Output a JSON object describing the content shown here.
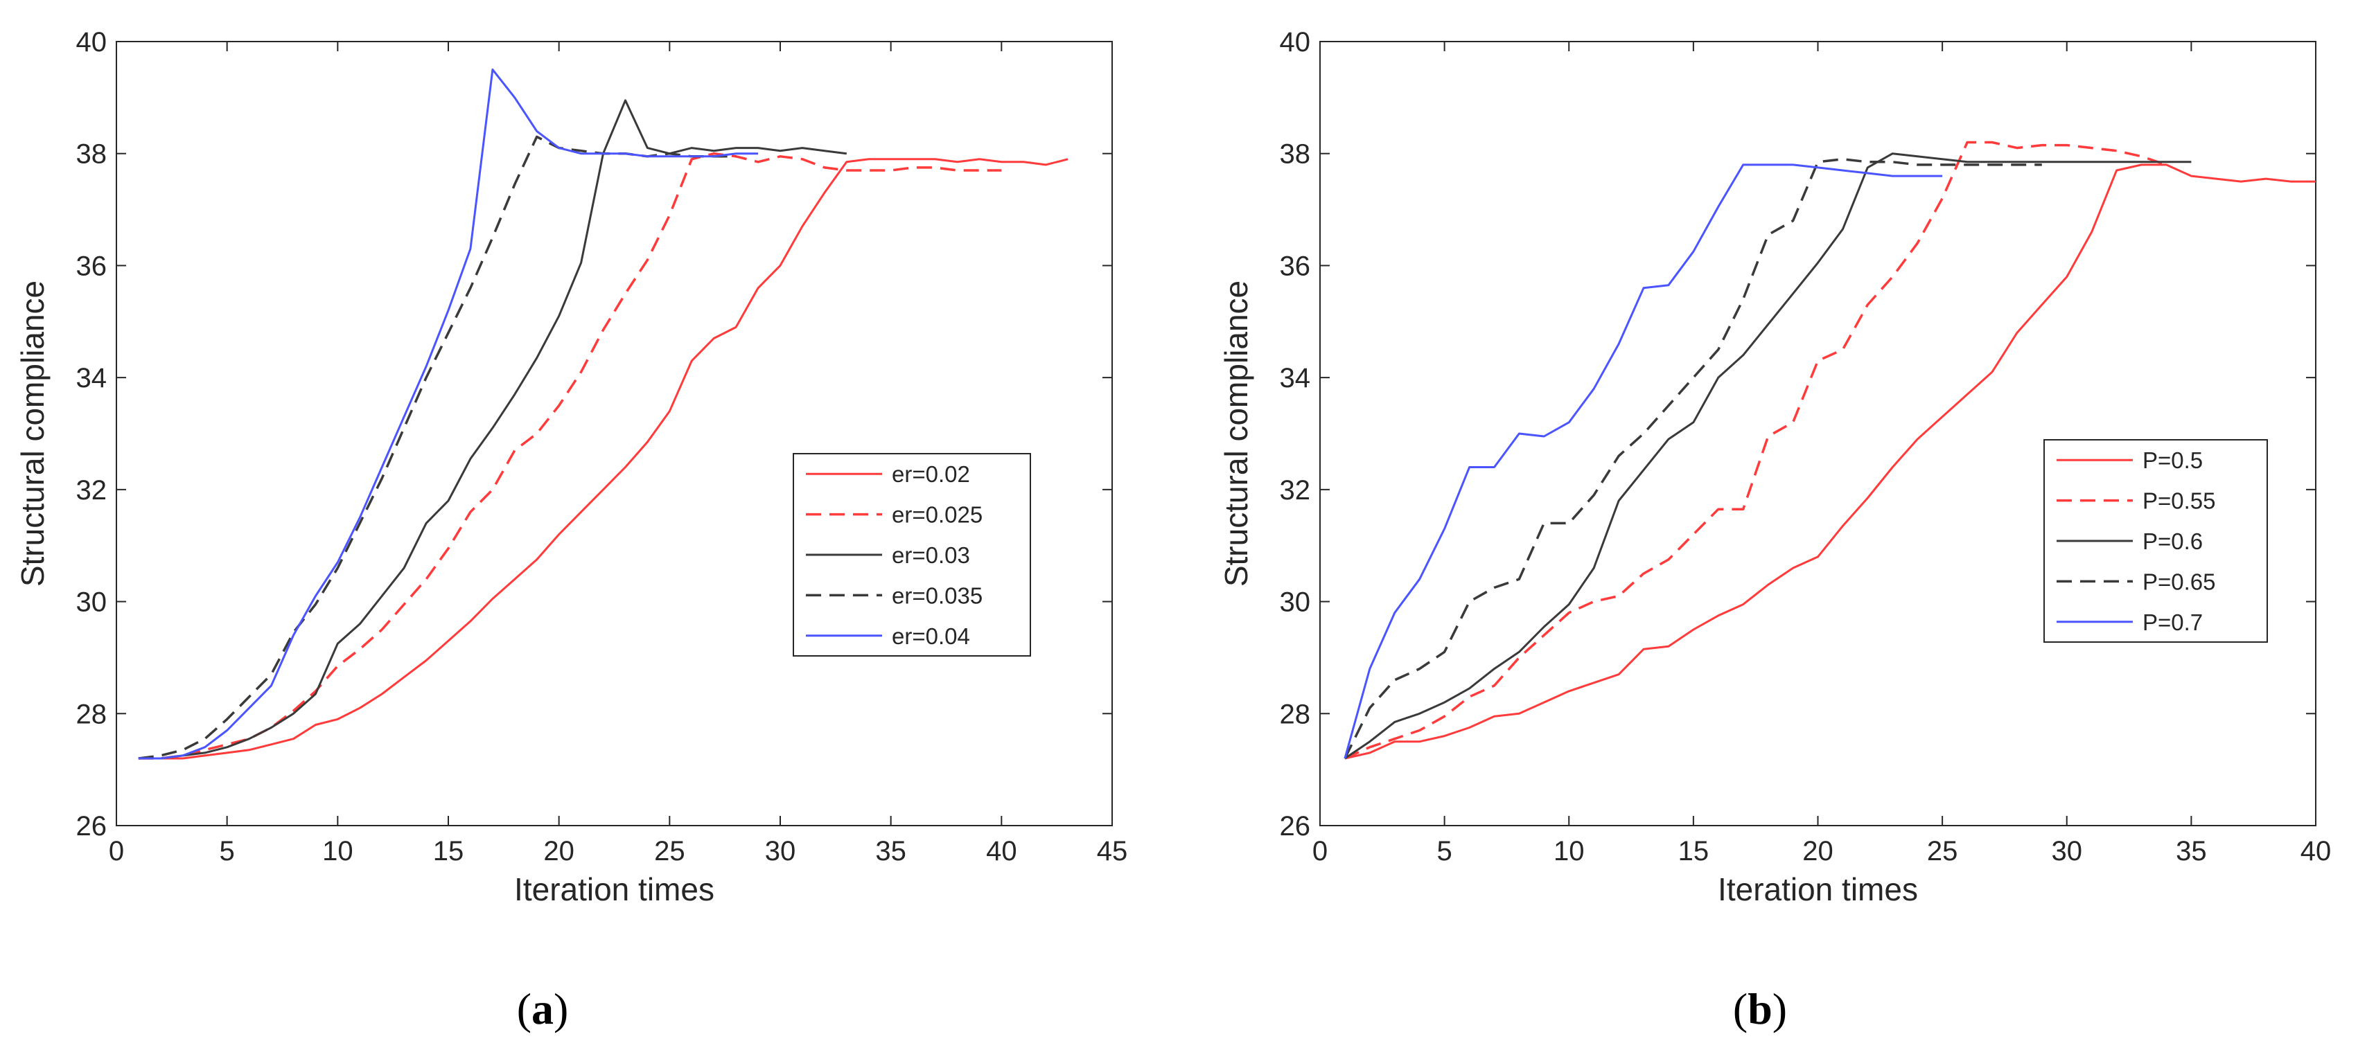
{
  "chart_data": [
    {
      "type": "line",
      "caption_open": "(",
      "caption_letter": "a",
      "caption_close": ")",
      "xlabel": "Iteration times",
      "ylabel": "Structural compliance",
      "xlim": [
        0,
        45
      ],
      "ylim": [
        26,
        40
      ],
      "xticks": [
        0,
        5,
        10,
        15,
        20,
        25,
        30,
        35,
        40,
        45
      ],
      "yticks": [
        26,
        28,
        30,
        32,
        34,
        36,
        38,
        40
      ],
      "legend_position": "right-middle",
      "series": [
        {
          "name": "er=0.02",
          "color": "#ff3b3b",
          "dash": "solid",
          "x": [
            1,
            2,
            3,
            4,
            5,
            6,
            7,
            8,
            9,
            10,
            11,
            12,
            13,
            14,
            15,
            16,
            17,
            18,
            19,
            20,
            21,
            22,
            23,
            24,
            25,
            26,
            27,
            28,
            29,
            30,
            31,
            32,
            33,
            34,
            35,
            36,
            37,
            38,
            39,
            40,
            41,
            42,
            43
          ],
          "y": [
            27.2,
            27.2,
            27.2,
            27.25,
            27.3,
            27.35,
            27.45,
            27.55,
            27.8,
            27.9,
            28.1,
            28.35,
            28.65,
            28.95,
            29.3,
            29.65,
            30.05,
            30.4,
            30.75,
            31.2,
            31.6,
            32.0,
            32.4,
            32.85,
            33.4,
            34.3,
            34.7,
            34.9,
            35.6,
            36.0,
            36.7,
            37.3,
            37.85,
            37.9,
            37.9,
            37.9,
            37.9,
            37.85,
            37.9,
            37.85,
            37.85,
            37.8,
            37.9
          ]
        },
        {
          "name": "er=0.025",
          "color": "#ff3b3b",
          "dash": "dashed",
          "x": [
            1,
            2,
            3,
            4,
            5,
            6,
            7,
            8,
            9,
            10,
            11,
            12,
            13,
            14,
            15,
            16,
            17,
            18,
            19,
            20,
            21,
            22,
            23,
            24,
            25,
            26,
            27,
            28,
            29,
            30,
            31,
            32,
            33,
            34,
            35,
            36,
            37,
            38,
            39,
            40
          ],
          "y": [
            27.2,
            27.2,
            27.25,
            27.35,
            27.45,
            27.55,
            27.75,
            28.05,
            28.4,
            28.85,
            29.15,
            29.5,
            29.95,
            30.4,
            30.95,
            31.6,
            32.0,
            32.7,
            33.0,
            33.5,
            34.1,
            34.85,
            35.5,
            36.1,
            36.9,
            37.9,
            38.0,
            37.95,
            37.85,
            37.95,
            37.9,
            37.75,
            37.7,
            37.7,
            37.7,
            37.75,
            37.75,
            37.7,
            37.7,
            37.7
          ]
        },
        {
          "name": "er=0.03",
          "color": "#3a3a3a",
          "dash": "solid",
          "x": [
            1,
            2,
            3,
            4,
            5,
            6,
            7,
            8,
            9,
            10,
            11,
            12,
            13,
            14,
            15,
            16,
            17,
            18,
            19,
            20,
            21,
            22,
            23,
            24,
            25,
            26,
            27,
            28,
            29,
            30,
            31,
            32,
            33
          ],
          "y": [
            27.2,
            27.2,
            27.25,
            27.3,
            27.4,
            27.55,
            27.75,
            28.0,
            28.35,
            29.25,
            29.6,
            30.1,
            30.6,
            31.4,
            31.8,
            32.55,
            33.1,
            33.7,
            34.35,
            35.1,
            36.05,
            38.0,
            38.95,
            38.1,
            38.0,
            38.1,
            38.05,
            38.1,
            38.1,
            38.05,
            38.1,
            38.05,
            38.0
          ]
        },
        {
          "name": "er=0.035",
          "color": "#3a3a3a",
          "dash": "dashed",
          "x": [
            1,
            2,
            3,
            4,
            5,
            6,
            7,
            8,
            9,
            10,
            11,
            12,
            13,
            14,
            15,
            16,
            17,
            18,
            19,
            20,
            21,
            22,
            23,
            24,
            25,
            26,
            27,
            28
          ],
          "y": [
            27.2,
            27.25,
            27.35,
            27.55,
            27.9,
            28.3,
            28.7,
            29.45,
            29.95,
            30.6,
            31.4,
            32.2,
            33.1,
            34.0,
            34.8,
            35.6,
            36.5,
            37.45,
            38.3,
            38.1,
            38.05,
            38.0,
            38.0,
            37.95,
            38.0,
            37.95,
            37.95,
            37.95
          ]
        },
        {
          "name": "er=0.04",
          "color": "#4a55ff",
          "dash": "solid",
          "x": [
            1,
            2,
            3,
            4,
            5,
            6,
            7,
            8,
            9,
            10,
            11,
            12,
            13,
            14,
            15,
            16,
            17,
            18,
            19,
            20,
            21,
            22,
            23,
            24,
            25,
            26,
            27,
            28,
            29
          ],
          "y": [
            27.2,
            27.2,
            27.25,
            27.4,
            27.7,
            28.1,
            28.5,
            29.4,
            30.1,
            30.7,
            31.5,
            32.4,
            33.3,
            34.2,
            35.2,
            36.3,
            39.5,
            39.0,
            38.4,
            38.1,
            38.0,
            38.0,
            38.0,
            37.95,
            37.95,
            37.95,
            37.95,
            38.0,
            38.0
          ]
        }
      ]
    },
    {
      "type": "line",
      "caption_open": "(",
      "caption_letter": "b",
      "caption_close": ")",
      "xlabel": "Iteration times",
      "ylabel": "Structural compliance",
      "xlim": [
        0,
        40
      ],
      "ylim": [
        26,
        40
      ],
      "xticks": [
        0,
        5,
        10,
        15,
        20,
        25,
        30,
        35,
        40
      ],
      "yticks": [
        26,
        28,
        30,
        32,
        34,
        36,
        38,
        40
      ],
      "legend_position": "right-middle",
      "series": [
        {
          "name": "P=0.5",
          "color": "#ff3b3b",
          "dash": "solid",
          "x": [
            1,
            2,
            3,
            4,
            5,
            6,
            7,
            8,
            9,
            10,
            11,
            12,
            13,
            14,
            15,
            16,
            17,
            18,
            19,
            20,
            21,
            22,
            23,
            24,
            25,
            26,
            27,
            28,
            29,
            30,
            31,
            32,
            33,
            34,
            35,
            36,
            37,
            38,
            39,
            40
          ],
          "y": [
            27.2,
            27.3,
            27.5,
            27.5,
            27.6,
            27.75,
            27.95,
            28.0,
            28.2,
            28.4,
            28.55,
            28.7,
            29.15,
            29.2,
            29.5,
            29.75,
            29.95,
            30.3,
            30.6,
            30.8,
            31.35,
            31.85,
            32.4,
            32.9,
            33.3,
            33.7,
            34.1,
            34.8,
            35.3,
            35.8,
            36.6,
            37.7,
            37.8,
            37.8,
            37.6,
            37.55,
            37.5,
            37.55,
            37.5,
            37.5
          ]
        },
        {
          "name": "P=0.55",
          "color": "#ff3b3b",
          "dash": "dashed",
          "x": [
            1,
            2,
            3,
            4,
            5,
            6,
            7,
            8,
            9,
            10,
            11,
            12,
            13,
            14,
            15,
            16,
            17,
            18,
            19,
            20,
            21,
            22,
            23,
            24,
            25,
            26,
            27,
            28,
            29,
            30,
            31,
            32,
            33,
            34
          ],
          "y": [
            27.2,
            27.4,
            27.55,
            27.7,
            27.95,
            28.3,
            28.5,
            29.0,
            29.4,
            29.8,
            30.0,
            30.1,
            30.5,
            30.75,
            31.2,
            31.65,
            31.65,
            32.95,
            33.2,
            34.3,
            34.5,
            35.3,
            35.8,
            36.4,
            37.2,
            38.2,
            38.2,
            38.1,
            38.15,
            38.15,
            38.1,
            38.05,
            37.95,
            37.8
          ]
        },
        {
          "name": "P=0.6",
          "color": "#3a3a3a",
          "dash": "solid",
          "x": [
            1,
            2,
            3,
            4,
            5,
            6,
            7,
            8,
            9,
            10,
            11,
            12,
            13,
            14,
            15,
            16,
            17,
            18,
            19,
            20,
            21,
            22,
            23,
            24,
            25,
            26,
            27,
            28,
            29,
            30,
            31,
            32,
            33,
            34,
            35
          ],
          "y": [
            27.2,
            27.5,
            27.85,
            28.0,
            28.2,
            28.45,
            28.8,
            29.1,
            29.55,
            29.95,
            30.6,
            31.8,
            32.35,
            32.9,
            33.2,
            34.0,
            34.4,
            34.95,
            35.5,
            36.05,
            36.65,
            37.75,
            38.0,
            37.95,
            37.9,
            37.85,
            37.85,
            37.85,
            37.85,
            37.85,
            37.85,
            37.85,
            37.85,
            37.85,
            37.85
          ]
        },
        {
          "name": "P=0.65",
          "color": "#3a3a3a",
          "dash": "dashed",
          "x": [
            1,
            2,
            3,
            4,
            5,
            6,
            7,
            8,
            9,
            10,
            11,
            12,
            13,
            14,
            15,
            16,
            17,
            18,
            19,
            20,
            21,
            22,
            23,
            24,
            25,
            26,
            27,
            28,
            29
          ],
          "y": [
            27.2,
            28.1,
            28.6,
            28.8,
            29.1,
            30.0,
            30.25,
            30.4,
            31.4,
            31.4,
            31.9,
            32.6,
            33.0,
            33.5,
            34.0,
            34.5,
            35.4,
            36.55,
            36.8,
            37.85,
            37.9,
            37.85,
            37.85,
            37.8,
            37.8,
            37.8,
            37.8,
            37.8,
            37.8
          ]
        },
        {
          "name": "P=0.7",
          "color": "#4a55ff",
          "dash": "solid",
          "x": [
            1,
            2,
            3,
            4,
            5,
            6,
            7,
            8,
            9,
            10,
            11,
            12,
            13,
            14,
            15,
            16,
            17,
            18,
            19,
            20,
            21,
            22,
            23,
            24,
            25
          ],
          "y": [
            27.2,
            28.8,
            29.8,
            30.4,
            31.3,
            32.4,
            32.4,
            33.0,
            32.95,
            33.2,
            33.8,
            34.6,
            35.6,
            35.65,
            36.25,
            37.05,
            37.8,
            37.8,
            37.8,
            37.75,
            37.7,
            37.65,
            37.6,
            37.6,
            37.6
          ]
        }
      ]
    }
  ]
}
